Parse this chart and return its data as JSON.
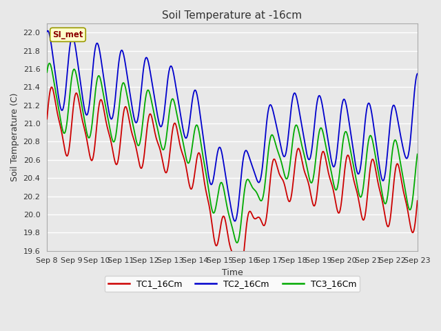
{
  "title": "Soil Temperature at -16cm",
  "ylabel": "Soil Temperature (C)",
  "xlabel": "Time",
  "annotation": "SI_met",
  "ylim": [
    19.6,
    22.1
  ],
  "yticks": [
    19.6,
    19.8,
    20.0,
    20.2,
    20.4,
    20.6,
    20.8,
    21.0,
    21.2,
    21.4,
    21.6,
    21.8,
    22.0
  ],
  "xtick_labels": [
    "Sep 8",
    "Sep 9",
    "Sep 10",
    "Sep 11",
    "Sep 12",
    "Sep 13",
    "Sep 14",
    "Sep 15",
    "Sep 16",
    "Sep 17",
    "Sep 18",
    "Sep 19",
    "Sep 20",
    "Sep 21",
    "Sep 22",
    "Sep 23"
  ],
  "colors": {
    "TC1": "#cc0000",
    "TC2": "#0000cc",
    "TC3": "#00aa00"
  },
  "bg_color": "#e8e8e8",
  "plot_bg_color": "#e8e8e8",
  "grid_color": "#ffffff",
  "legend_labels": [
    "TC1_16Cm",
    "TC2_16Cm",
    "TC3_16Cm"
  ],
  "figsize": [
    6.4,
    4.8
  ],
  "dpi": 100
}
